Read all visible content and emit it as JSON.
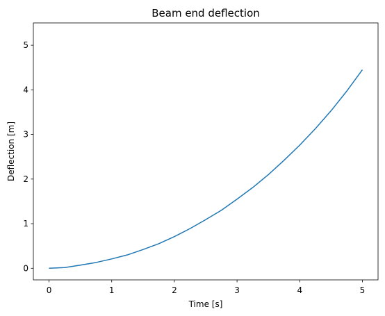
{
  "chart_data": {
    "type": "line",
    "title": "Beam end deflection",
    "xlabel": "Time [s]",
    "ylabel": "Deflection [m]",
    "xlim": [
      -0.25,
      5.25
    ],
    "ylim": [
      -0.26,
      5.5
    ],
    "xticks": [
      0,
      1,
      2,
      3,
      4,
      5
    ],
    "yticks": [
      0,
      1,
      2,
      3,
      4,
      5
    ],
    "xtick_labels": [
      "0",
      "1",
      "2",
      "3",
      "4",
      "5"
    ],
    "ytick_labels": [
      "0",
      "1",
      "2",
      "3",
      "4",
      "5"
    ],
    "grid": false,
    "legend": "none",
    "series": [
      {
        "color": "#1f77b4",
        "x": [
          0,
          0.25,
          0.5,
          0.75,
          1.0,
          1.25,
          1.5,
          1.75,
          2.0,
          2.25,
          2.5,
          2.75,
          3.0,
          3.25,
          3.5,
          3.75,
          4.0,
          4.25,
          4.5,
          4.75,
          5.0
        ],
        "y": [
          0.0,
          0.017,
          0.07,
          0.13,
          0.21,
          0.3,
          0.42,
          0.55,
          0.71,
          0.89,
          1.09,
          1.3,
          1.55,
          1.81,
          2.1,
          2.42,
          2.76,
          3.13,
          3.53,
          3.97,
          4.45
        ]
      }
    ]
  }
}
